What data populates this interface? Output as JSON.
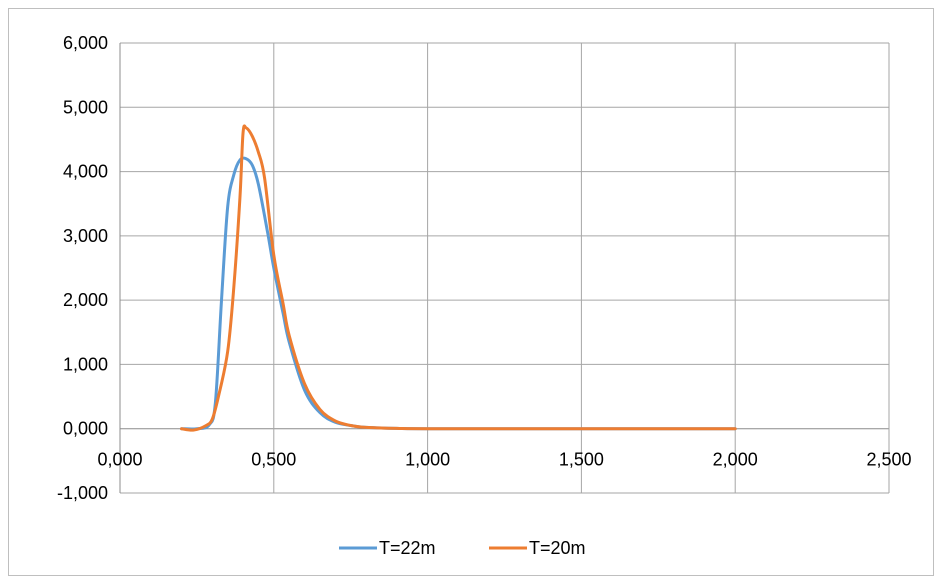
{
  "chart_data": {
    "type": "line",
    "title": "",
    "xlabel": "",
    "ylabel": "",
    "xlim": [
      0,
      2.5
    ],
    "ylim": [
      -1,
      6
    ],
    "x_ticks": [
      0,
      0.5,
      1.0,
      1.5,
      2.0,
      2.5
    ],
    "x_tick_labels": [
      "0,000",
      "0,500",
      "1,000",
      "1,500",
      "2,000",
      "2,500"
    ],
    "y_ticks": [
      -1,
      0,
      1,
      2,
      3,
      4,
      5,
      6
    ],
    "y_tick_labels": [
      "-1,000",
      "0,000",
      "1,000",
      "2,000",
      "3,000",
      "4,000",
      "5,000",
      "6,000"
    ],
    "grid": true,
    "legend_position": "bottom",
    "series": [
      {
        "name": "T=22m",
        "color": "#5b9bd5",
        "points": [
          [
            0.2,
            0.0
          ],
          [
            0.25,
            0.0
          ],
          [
            0.29,
            0.06
          ],
          [
            0.31,
            0.4
          ],
          [
            0.33,
            2.0
          ],
          [
            0.35,
            3.45
          ],
          [
            0.37,
            3.95
          ],
          [
            0.39,
            4.18
          ],
          [
            0.41,
            4.2
          ],
          [
            0.43,
            4.1
          ],
          [
            0.45,
            3.8
          ],
          [
            0.48,
            3.05
          ],
          [
            0.5,
            2.5
          ],
          [
            0.53,
            1.8
          ],
          [
            0.55,
            1.35
          ],
          [
            0.6,
            0.6
          ],
          [
            0.65,
            0.25
          ],
          [
            0.7,
            0.1
          ],
          [
            0.75,
            0.05
          ],
          [
            0.8,
            0.02
          ],
          [
            0.9,
            0.005
          ],
          [
            1.0,
            0.0
          ],
          [
            1.5,
            0.0
          ],
          [
            2.0,
            0.0
          ]
        ]
      },
      {
        "name": "T=20m",
        "color": "#ed7d31",
        "points": [
          [
            0.2,
            0.0
          ],
          [
            0.24,
            -0.02
          ],
          [
            0.28,
            0.05
          ],
          [
            0.3,
            0.15
          ],
          [
            0.32,
            0.5
          ],
          [
            0.35,
            1.2
          ],
          [
            0.37,
            2.2
          ],
          [
            0.39,
            3.6
          ],
          [
            0.4,
            4.6
          ],
          [
            0.41,
            4.68
          ],
          [
            0.43,
            4.55
          ],
          [
            0.45,
            4.3
          ],
          [
            0.47,
            3.9
          ],
          [
            0.5,
            2.7
          ],
          [
            0.53,
            1.95
          ],
          [
            0.55,
            1.45
          ],
          [
            0.6,
            0.7
          ],
          [
            0.65,
            0.3
          ],
          [
            0.7,
            0.12
          ],
          [
            0.75,
            0.05
          ],
          [
            0.8,
            0.02
          ],
          [
            0.9,
            0.005
          ],
          [
            1.0,
            0.0
          ],
          [
            1.5,
            0.0
          ],
          [
            2.0,
            0.0
          ]
        ]
      }
    ]
  }
}
